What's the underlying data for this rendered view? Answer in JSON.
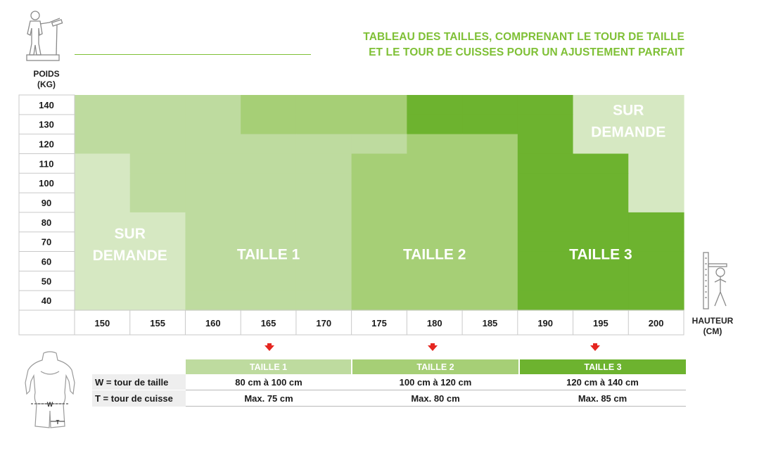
{
  "title": {
    "line1": "TABLEAU DES TAILLES, COMPRENANT LE TOUR DE TAILLE",
    "line2": "ET LE TOUR DE CUISSES POUR UN AJUSTEMENT PARFAIT"
  },
  "colors": {
    "title_green": "#7fc036",
    "sur_demande": "#d6e8c2",
    "taille1": "#bedb9f",
    "taille2": "#a6cf76",
    "taille3": "#6db32f",
    "arrow": "#e52620"
  },
  "icons": [
    "person-on-scale-icon",
    "person-height-gauge-icon",
    "torso-measurement-icon",
    "down-arrow-icon"
  ],
  "chart_data": {
    "type": "heatmap",
    "ylabel_line1": "POIDS",
    "ylabel_line2": "(KG)",
    "xlabel_line1": "HAUTEUR",
    "xlabel_line2": "(CM)",
    "weights": [
      140,
      130,
      120,
      110,
      100,
      90,
      80,
      70,
      60,
      50,
      40
    ],
    "heights": [
      150,
      155,
      160,
      165,
      170,
      175,
      180,
      185,
      190,
      195,
      200
    ],
    "zones": [
      {
        "id": "sur-demande-low",
        "label_line1": "SUR",
        "label_line2": "DEMANDE",
        "color": "#d6e8c2"
      },
      {
        "id": "taille-1",
        "label": "TAILLE 1",
        "color": "#bedb9f"
      },
      {
        "id": "taille-2",
        "label": "TAILLE 2",
        "color": "#a6cf76"
      },
      {
        "id": "taille-3",
        "label": "TAILLE 3",
        "color": "#6db32f"
      },
      {
        "id": "sur-demande-high",
        "label_line1": "SUR",
        "label_line2": "DEMANDE",
        "color": "#d6e8c2"
      }
    ],
    "grid": [
      [
        "taille-1",
        "taille-1",
        "taille-1",
        "taille-2",
        "taille-2",
        "taille-2",
        "taille-3",
        "taille-3",
        "taille-3",
        "sur-demande-high",
        "sur-demande-high"
      ],
      [
        "taille-1",
        "taille-1",
        "taille-1",
        "taille-2",
        "taille-2",
        "taille-2",
        "taille-3",
        "taille-3",
        "taille-3",
        "sur-demande-high",
        "sur-demande-high"
      ],
      [
        "taille-1",
        "taille-1",
        "taille-1",
        "taille-1",
        "taille-1",
        "taille-1",
        "taille-2",
        "taille-2",
        "taille-3",
        "sur-demande-high",
        "sur-demande-high"
      ],
      [
        "sur-demande-low",
        "taille-1",
        "taille-1",
        "taille-1",
        "taille-1",
        "taille-2",
        "taille-2",
        "taille-2",
        "taille-3",
        "taille-3",
        "sur-demande-high"
      ],
      [
        "sur-demande-low",
        "taille-1",
        "taille-1",
        "taille-1",
        "taille-1",
        "taille-2",
        "taille-2",
        "taille-2",
        "taille-3",
        "taille-3",
        "sur-demande-high"
      ],
      [
        "sur-demande-low",
        "taille-1",
        "taille-1",
        "taille-1",
        "taille-1",
        "taille-2",
        "taille-2",
        "taille-2",
        "taille-3",
        "taille-3",
        "sur-demande-high"
      ],
      [
        "sur-demande-low",
        "sur-demande-low",
        "taille-1",
        "taille-1",
        "taille-1",
        "taille-2",
        "taille-2",
        "taille-2",
        "taille-3",
        "taille-3",
        "taille-3"
      ],
      [
        "sur-demande-low",
        "sur-demande-low",
        "taille-1",
        "taille-1",
        "taille-1",
        "taille-2",
        "taille-2",
        "taille-2",
        "taille-3",
        "taille-3",
        "taille-3"
      ],
      [
        "sur-demande-low",
        "sur-demande-low",
        "taille-1",
        "taille-1",
        "taille-1",
        "taille-2",
        "taille-2",
        "taille-2",
        "taille-3",
        "taille-3",
        "taille-3"
      ],
      [
        "sur-demande-low",
        "sur-demande-low",
        "taille-1",
        "taille-1",
        "taille-1",
        "taille-2",
        "taille-2",
        "taille-2",
        "taille-3",
        "taille-3",
        "taille-3"
      ],
      [
        "sur-demande-low",
        "sur-demande-low",
        "taille-1",
        "taille-1",
        "taille-1",
        "taille-2",
        "taille-2",
        "taille-2",
        "taille-3",
        "taille-3",
        "taille-3"
      ]
    ]
  },
  "size_table": {
    "headers": [
      "TAILLE 1",
      "TAILLE 2",
      "TAILLE 3"
    ],
    "rows": [
      {
        "label": "W = tour de taille",
        "values": [
          "80 cm à 100 cm",
          "100 cm à 120 cm",
          "120 cm à 140 cm"
        ]
      },
      {
        "label": "T = tour de cuisse",
        "values": [
          "Max. 75 cm",
          "Max. 80 cm",
          "Max. 85 cm"
        ]
      }
    ],
    "figure_labels": {
      "waist": "W",
      "thigh": "T"
    }
  }
}
